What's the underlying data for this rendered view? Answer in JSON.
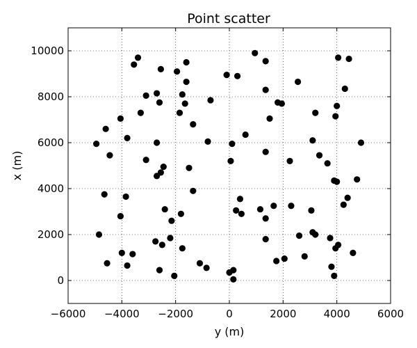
{
  "chart_data": {
    "type": "scatter",
    "title": "Point scatter",
    "xlabel": "y (m)",
    "ylabel": "x (m)",
    "xlim": [
      -6000,
      6000
    ],
    "ylim": [
      -1000,
      11000
    ],
    "xticks": [
      -6000,
      -4000,
      -2000,
      0,
      2000,
      4000,
      6000
    ],
    "yticks": [
      0,
      2000,
      4000,
      6000,
      8000,
      10000
    ],
    "xtick_labels": [
      "−6000",
      "−4000",
      "−2000",
      "0",
      "2000",
      "4000",
      "6000"
    ],
    "ytick_labels": [
      "0",
      "2000",
      "4000",
      "6000",
      "8000",
      "10000"
    ],
    "grid": true,
    "marker_color": "#000000",
    "points": [
      {
        "x": -3400,
        "y": 9700
      },
      {
        "x": -3550,
        "y": 9400
      },
      {
        "x": -2550,
        "y": 9200
      },
      {
        "x": -1950,
        "y": 9100
      },
      {
        "x": -1600,
        "y": 9500
      },
      {
        "x": 950,
        "y": 9900
      },
      {
        "x": 1350,
        "y": 9550
      },
      {
        "x": 4050,
        "y": 9700
      },
      {
        "x": 4450,
        "y": 9650
      },
      {
        "x": -100,
        "y": 8950
      },
      {
        "x": 300,
        "y": 8900
      },
      {
        "x": -1600,
        "y": 8650
      },
      {
        "x": 2550,
        "y": 8650
      },
      {
        "x": 4300,
        "y": 8350
      },
      {
        "x": -3100,
        "y": 8050
      },
      {
        "x": -2700,
        "y": 8150
      },
      {
        "x": -1750,
        "y": 8100
      },
      {
        "x": 1350,
        "y": 8300
      },
      {
        "x": -2600,
        "y": 7750
      },
      {
        "x": -1650,
        "y": 7700
      },
      {
        "x": -700,
        "y": 7850
      },
      {
        "x": 1800,
        "y": 7750
      },
      {
        "x": 1950,
        "y": 7700
      },
      {
        "x": 4000,
        "y": 7600
      },
      {
        "x": -3300,
        "y": 7300
      },
      {
        "x": -1850,
        "y": 7300
      },
      {
        "x": 1500,
        "y": 7050
      },
      {
        "x": 3200,
        "y": 7300
      },
      {
        "x": 3950,
        "y": 7150
      },
      {
        "x": -4050,
        "y": 7050
      },
      {
        "x": -1350,
        "y": 6800
      },
      {
        "x": -4600,
        "y": 6600
      },
      {
        "x": 600,
        "y": 6350
      },
      {
        "x": -3800,
        "y": 6200
      },
      {
        "x": -800,
        "y": 6050
      },
      {
        "x": 3100,
        "y": 6100
      },
      {
        "x": -4950,
        "y": 5950
      },
      {
        "x": -2700,
        "y": 6000
      },
      {
        "x": 100,
        "y": 5950
      },
      {
        "x": 4900,
        "y": 6000
      },
      {
        "x": -4450,
        "y": 5450
      },
      {
        "x": 1350,
        "y": 5600
      },
      {
        "x": 3350,
        "y": 5450
      },
      {
        "x": -3100,
        "y": 5250
      },
      {
        "x": 50,
        "y": 5200
      },
      {
        "x": 2250,
        "y": 5200
      },
      {
        "x": 3650,
        "y": 5100
      },
      {
        "x": -2450,
        "y": 4950
      },
      {
        "x": -1500,
        "y": 4900
      },
      {
        "x": -2550,
        "y": 4700
      },
      {
        "x": -2700,
        "y": 4550
      },
      {
        "x": 3900,
        "y": 4350
      },
      {
        "x": 4000,
        "y": 4300
      },
      {
        "x": 4750,
        "y": 4400
      },
      {
        "x": -1350,
        "y": 3900
      },
      {
        "x": -4650,
        "y": 3750
      },
      {
        "x": -3850,
        "y": 3650
      },
      {
        "x": 400,
        "y": 3550
      },
      {
        "x": 4400,
        "y": 3600
      },
      {
        "x": 4250,
        "y": 3300
      },
      {
        "x": -2400,
        "y": 3100
      },
      {
        "x": 250,
        "y": 3050
      },
      {
        "x": 1150,
        "y": 3100
      },
      {
        "x": 1650,
        "y": 3250
      },
      {
        "x": 2300,
        "y": 3250
      },
      {
        "x": 3050,
        "y": 3050
      },
      {
        "x": -1800,
        "y": 2900
      },
      {
        "x": 450,
        "y": 2900
      },
      {
        "x": -4050,
        "y": 2800
      },
      {
        "x": 1350,
        "y": 2700
      },
      {
        "x": -2150,
        "y": 2600
      },
      {
        "x": -4850,
        "y": 2000
      },
      {
        "x": 3100,
        "y": 2100
      },
      {
        "x": 3200,
        "y": 2000
      },
      {
        "x": 2600,
        "y": 1950
      },
      {
        "x": 3750,
        "y": 1850
      },
      {
        "x": -2200,
        "y": 1850
      },
      {
        "x": 1350,
        "y": 1800
      },
      {
        "x": -2750,
        "y": 1700
      },
      {
        "x": -2500,
        "y": 1550
      },
      {
        "x": -1750,
        "y": 1400
      },
      {
        "x": 4050,
        "y": 1550
      },
      {
        "x": 3950,
        "y": 1400
      },
      {
        "x": -4000,
        "y": 1200
      },
      {
        "x": -3600,
        "y": 1150
      },
      {
        "x": 4600,
        "y": 1200
      },
      {
        "x": 2800,
        "y": 1050
      },
      {
        "x": 2050,
        "y": 950
      },
      {
        "x": 1750,
        "y": 850
      },
      {
        "x": -4550,
        "y": 750
      },
      {
        "x": -3800,
        "y": 650
      },
      {
        "x": -1100,
        "y": 750
      },
      {
        "x": -850,
        "y": 550
      },
      {
        "x": 3800,
        "y": 600
      },
      {
        "x": -2600,
        "y": 450
      },
      {
        "x": 150,
        "y": 450
      },
      {
        "x": 0,
        "y": 350
      },
      {
        "x": -2050,
        "y": 200
      },
      {
        "x": 3900,
        "y": 200
      },
      {
        "x": 150,
        "y": 50
      }
    ]
  }
}
